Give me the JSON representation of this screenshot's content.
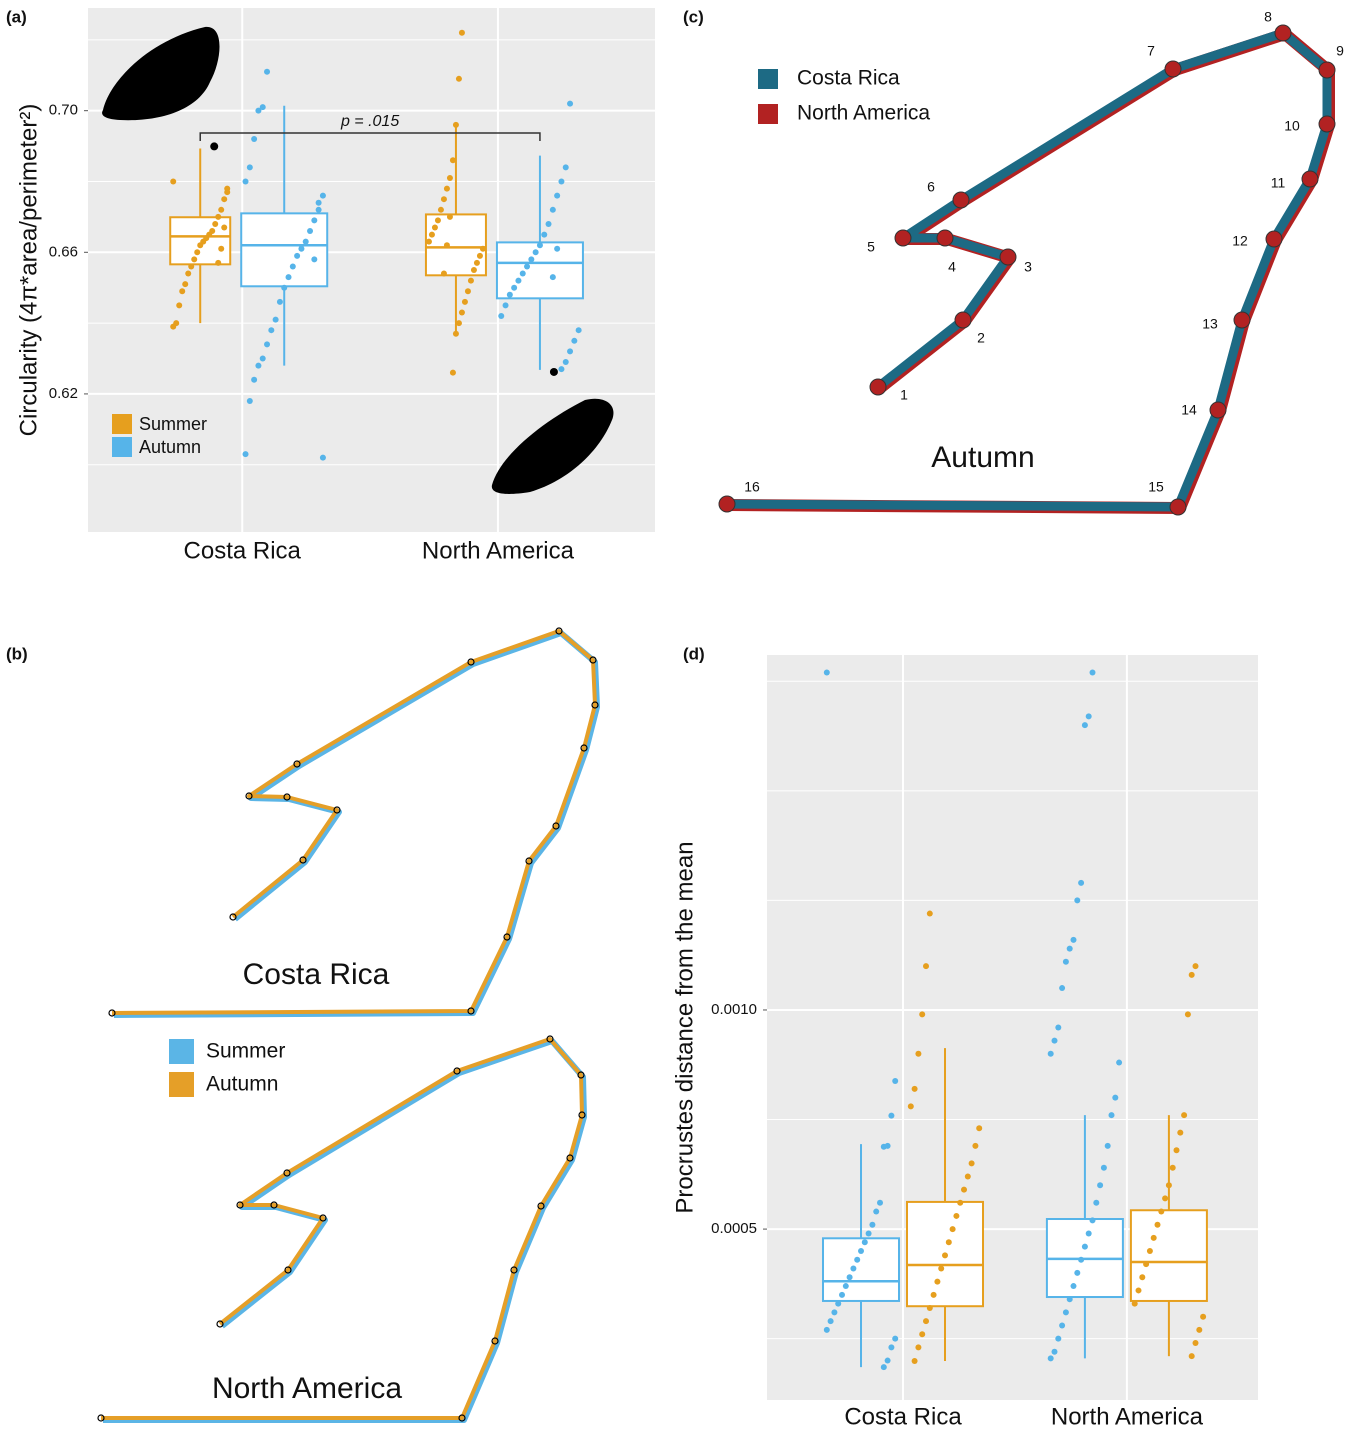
{
  "chart_data": [
    {
      "type": "box",
      "panel_label": "(a)",
      "y_label": "Circularity (4π*area/perimeter²)",
      "categories": [
        "Costa Rica",
        "North America"
      ],
      "ylim": [
        0.581,
        0.729
      ],
      "yticks": [
        0.62,
        0.66,
        {
          "value": 0.7,
          "label": "0.70"
        }
      ],
      "minor_yticks": [
        0.6,
        0.64,
        0.68,
        0.72
      ],
      "grid": true,
      "annotation": "p = .015",
      "series": [
        {
          "name": "Summer",
          "color": "#e69f1e",
          "boxes": [
            {
              "min": 0.64,
              "q1": 0.6566,
              "median": 0.6645,
              "q3": 0.6699,
              "max": 0.6893,
              "outliers": [
                0.6899
              ],
              "points": [
                0.68,
                0.678,
                0.675,
                0.672,
                0.67,
                0.668,
                0.666,
                0.665,
                0.664,
                0.663,
                0.662,
                0.66,
                0.658,
                0.656,
                0.654,
                0.651,
                0.649,
                0.645,
                0.64,
                0.639,
                0.677,
                0.667,
                0.661,
                0.657
              ]
            },
            {
              "min": 0.6375,
              "q1": 0.6535,
              "median": 0.6614,
              "q3": 0.6707,
              "max": 0.6955,
              "outliers": [],
              "points": [
                0.722,
                0.709,
                0.696,
                0.686,
                0.681,
                0.678,
                0.675,
                0.672,
                0.669,
                0.667,
                0.665,
                0.663,
                0.661,
                0.659,
                0.657,
                0.655,
                0.652,
                0.649,
                0.646,
                0.643,
                0.64,
                0.637,
                0.626,
                0.67,
                0.662,
                0.654
              ]
            }
          ]
        },
        {
          "name": "Autumn",
          "color": "#56b4e9",
          "boxes": [
            {
              "min": 0.628,
              "q1": 0.6504,
              "median": 0.662,
              "q3": 0.671,
              "max": 0.7014,
              "outliers": [],
              "points": [
                0.711,
                0.701,
                0.7,
                0.692,
                0.684,
                0.68,
                0.676,
                0.672,
                0.669,
                0.666,
                0.663,
                0.661,
                0.659,
                0.656,
                0.653,
                0.65,
                0.646,
                0.641,
                0.638,
                0.634,
                0.63,
                0.628,
                0.624,
                0.618,
                0.603,
                0.602,
                0.674,
                0.658
              ]
            },
            {
              "min": 0.6268,
              "q1": 0.647,
              "median": 0.657,
              "q3": 0.6628,
              "max": 0.6873,
              "outliers": [
                0.6262
              ],
              "points": [
                0.702,
                0.684,
                0.68,
                0.676,
                0.672,
                0.668,
                0.665,
                0.662,
                0.66,
                0.658,
                0.656,
                0.654,
                0.652,
                0.65,
                0.648,
                0.645,
                0.642,
                0.638,
                0.635,
                0.632,
                0.629,
                0.627,
                0.661,
                0.653
              ]
            }
          ]
        }
      ]
    },
    {
      "type": "box",
      "panel_label": "(d)",
      "y_label": "Procrustes distance from the mean",
      "categories": [
        "Costa Rica",
        "North America"
      ],
      "ylim": [
        0.00011,
        0.00181
      ],
      "yticks": [
        0.0005,
        {
          "value": 0.001,
          "label": "0.0010"
        }
      ],
      "minor_yticks": [
        0.00025,
        0.00075,
        0.00125,
        0.0015,
        0.00175
      ],
      "grid": true,
      "series": [
        {
          "color": "#56b4e9",
          "boxes": [
            {
              "min": 0.000185,
              "q1": 0.000336,
              "median": 0.000381,
              "q3": 0.000479,
              "max": 0.000694,
              "outliers": [],
              "points": [
                0.00177,
                0.000838,
                0.000759,
                0.00069,
                0.000688,
                0.00056,
                0.00054,
                0.00051,
                0.00049,
                0.00047,
                0.00045,
                0.00043,
                0.00041,
                0.00039,
                0.00037,
                0.00035,
                0.00033,
                0.00031,
                0.00029,
                0.00027,
                0.00025,
                0.00023,
                0.0002,
                0.000185
              ]
            },
            {
              "min": 0.000205,
              "q1": 0.000345,
              "median": 0.000432,
              "q3": 0.000523,
              "max": 0.00076,
              "outliers": [],
              "points": [
                0.00177,
                0.00167,
                0.00165,
                0.00129,
                0.00125,
                0.00116,
                0.00114,
                0.00111,
                0.00105,
                0.00096,
                0.00093,
                0.0009,
                0.00088,
                0.0008,
                0.00076,
                0.00069,
                0.00064,
                0.0006,
                0.00056,
                0.00052,
                0.00049,
                0.00046,
                0.00043,
                0.0004,
                0.00037,
                0.00034,
                0.00031,
                0.00028,
                0.00025,
                0.00022,
                0.000205
              ]
            }
          ]
        },
        {
          "color": "#e69f1e",
          "boxes": [
            {
              "min": 0.000199,
              "q1": 0.000324,
              "median": 0.000418,
              "q3": 0.000562,
              "max": 0.000913,
              "outliers": [],
              "points": [
                0.00122,
                0.0011,
                0.00099,
                0.0009,
                0.00082,
                0.00078,
                0.00073,
                0.00069,
                0.00065,
                0.00062,
                0.00059,
                0.00056,
                0.00053,
                0.0005,
                0.00047,
                0.00044,
                0.00041,
                0.00038,
                0.00035,
                0.00032,
                0.00029,
                0.00026,
                0.00023,
                0.000199
              ]
            },
            {
              "min": 0.00021,
              "q1": 0.000336,
              "median": 0.000425,
              "q3": 0.000543,
              "max": 0.00076,
              "outliers": [],
              "points": [
                0.0011,
                0.00108,
                0.00099,
                0.00076,
                0.00072,
                0.00068,
                0.00064,
                0.0006,
                0.00057,
                0.00054,
                0.00051,
                0.00048,
                0.00045,
                0.00042,
                0.00039,
                0.00036,
                0.00033,
                0.0003,
                0.00027,
                0.00024,
                0.00021
              ]
            }
          ]
        }
      ]
    }
  ],
  "shape_panels": [
    {
      "panel_label": "(b)",
      "series": [
        {
          "name": "Summer",
          "color": "#5bb5e6"
        },
        {
          "name": "Autumn",
          "color": "#e59f28"
        }
      ],
      "shapes": [
        {
          "title": "Costa Rica"
        },
        {
          "title": "North America"
        }
      ]
    },
    {
      "panel_label": "(c)",
      "title": "Autumn",
      "series": [
        {
          "name": "Costa Rica",
          "color": "#1d6a84"
        },
        {
          "name": "North America",
          "color": "#b22222"
        }
      ],
      "landmark_labels": [
        "1",
        "2",
        "3",
        "4",
        "5",
        "6",
        "7",
        "8",
        "9",
        "10",
        "11",
        "12",
        "13",
        "14",
        "15",
        "16"
      ]
    }
  ]
}
